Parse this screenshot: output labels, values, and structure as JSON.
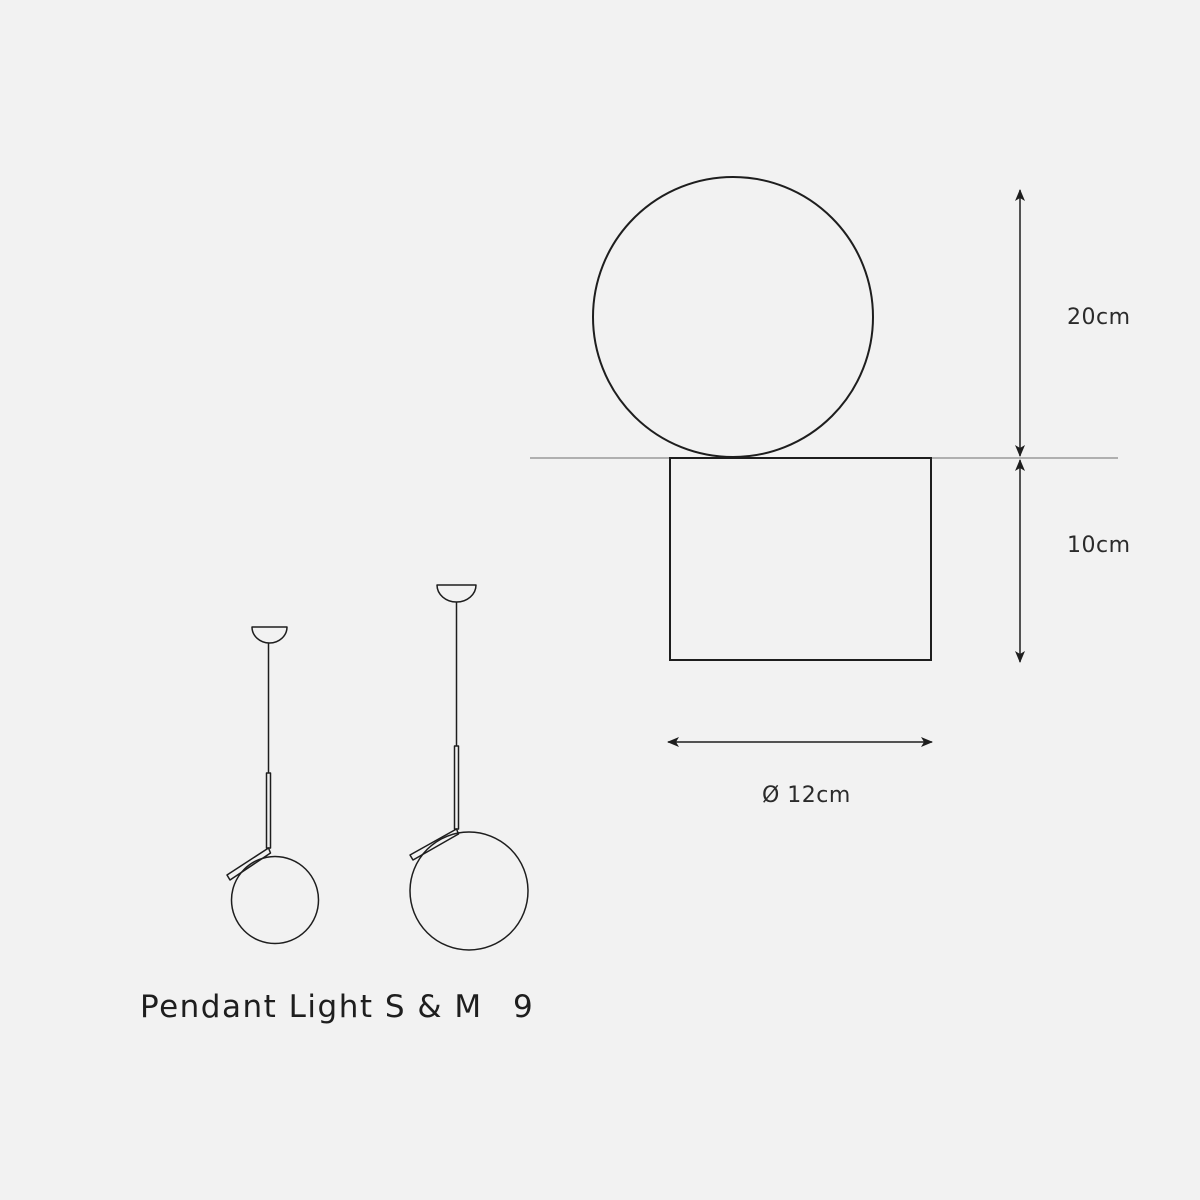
{
  "colors": {
    "background": "#f2f2f2",
    "stroke": "#1e1e1e",
    "baseline": "#9a9a9a"
  },
  "dimensions": {
    "globe_height": "20cm",
    "base_height": "10cm",
    "diameter": "Ø 12cm"
  },
  "caption": {
    "title": "Pendant Light S & M",
    "number": "9"
  }
}
